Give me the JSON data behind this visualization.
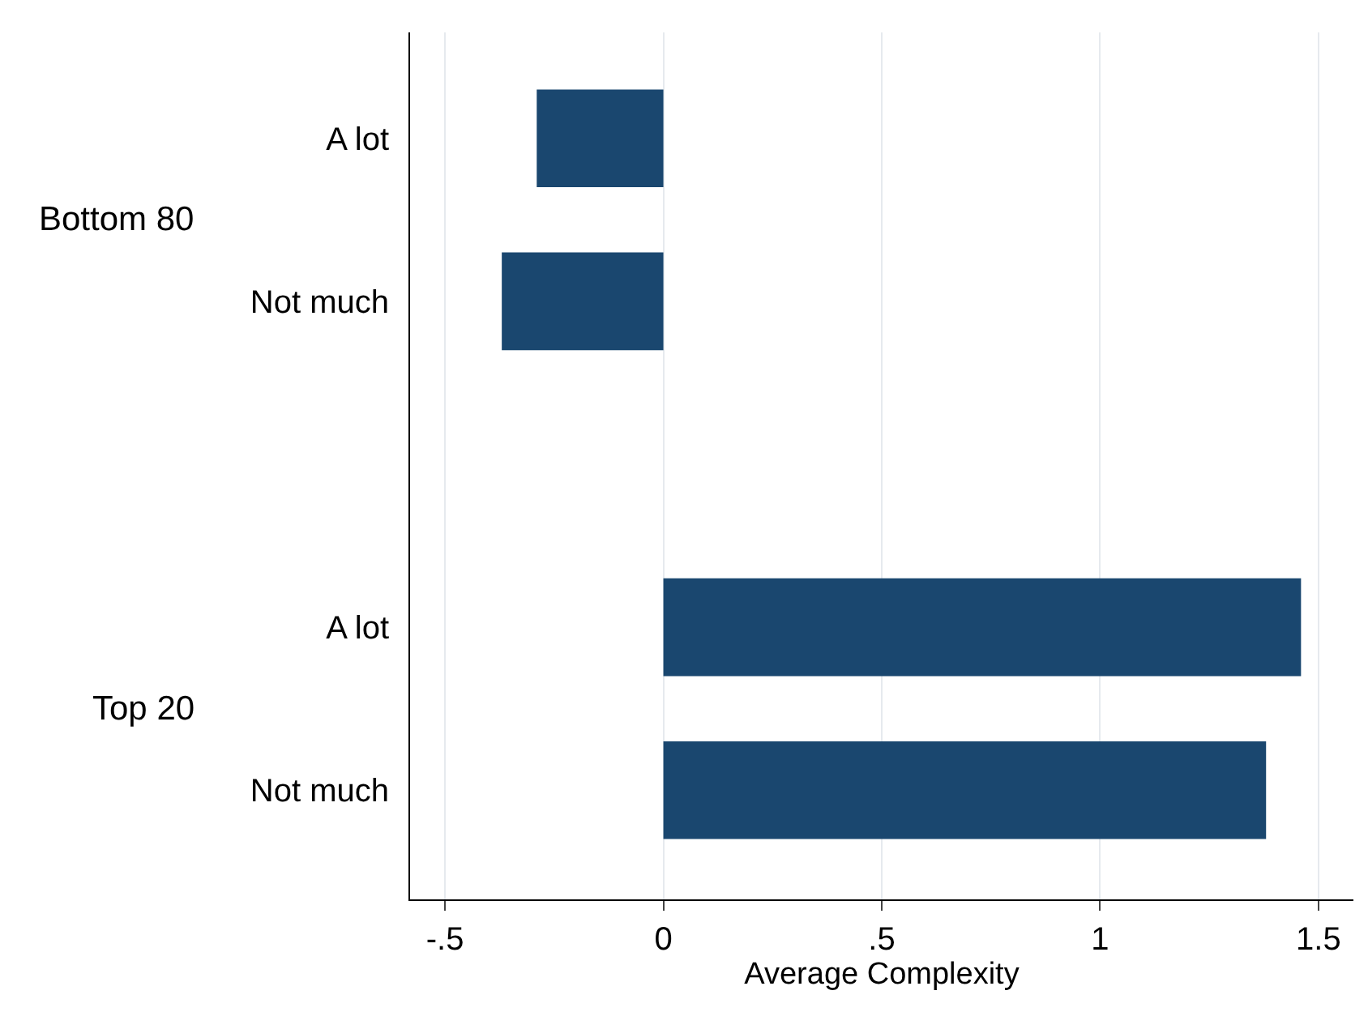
{
  "chart_data": {
    "type": "bar",
    "orientation": "horizontal",
    "categories": [
      "A lot",
      "Not much",
      null,
      "A lot",
      "Not much"
    ],
    "values": [
      -0.29,
      -0.37,
      null,
      1.46,
      1.38
    ],
    "color": "#1a476f",
    "xlabel": "Average Complexity",
    "xlim": [
      -0.58,
      1.58
    ],
    "xticks": [
      {
        "value": -0.5,
        "label": "-.5"
      },
      0,
      {
        "value": 0.5,
        "label": ".5"
      },
      1,
      1.5
    ],
    "annotations": [
      "Bottom 80",
      "Top 20"
    ],
    "grid": "x",
    "legend": false
  }
}
